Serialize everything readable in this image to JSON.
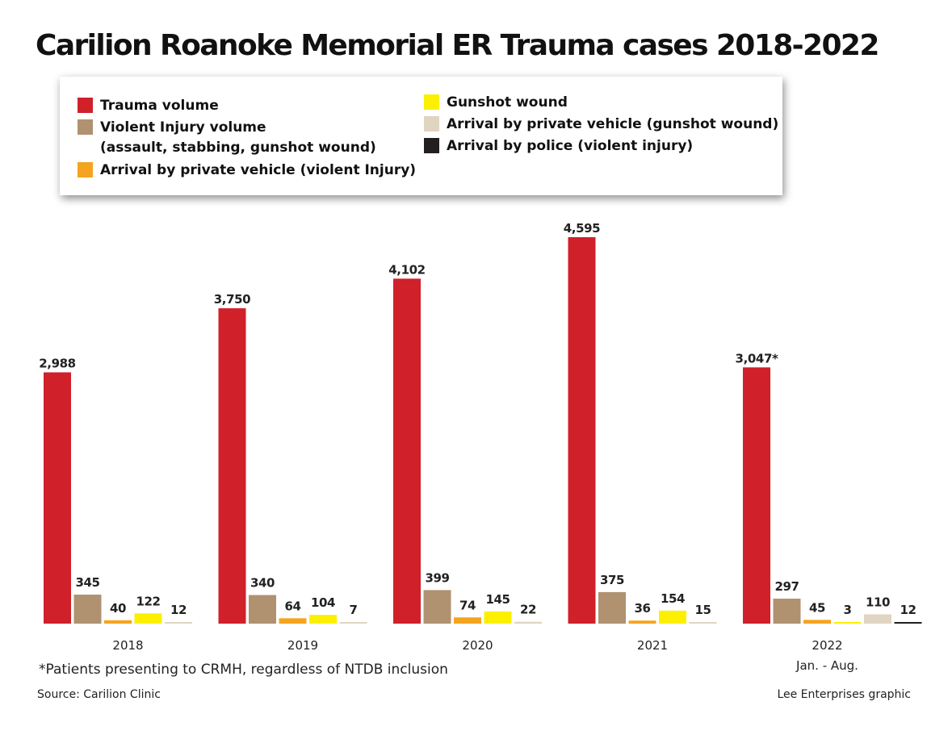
{
  "title": "Carilion Roanoke Memorial ER Trauma cases 2018-2022",
  "legend": [
    {
      "label": "Trauma volume",
      "sub": "",
      "color": "#d0202a"
    },
    {
      "label": "Violent Injury volume",
      "sub": "(assault, stabbing, gunshot wound)",
      "color": "#b09270"
    },
    {
      "label": "Arrival by private vehicle (violent Injury)",
      "sub": "",
      "color": "#f5a41f"
    },
    {
      "label": "Gunshot wound",
      "sub": "",
      "color": "#fcf000"
    },
    {
      "label": "Arrival by private vehicle (gunshot wound)",
      "sub": "",
      "color": "#e0d4c2"
    },
    {
      "label": "Arrival by police (violent injury)",
      "sub": "",
      "color": "#231f20"
    }
  ],
  "chart_data": {
    "type": "bar",
    "categories": [
      "2018",
      "2019",
      "2020",
      "2021",
      "2022"
    ],
    "category_sublabels": [
      "",
      "",
      "",
      "",
      "Jan. - Aug."
    ],
    "series": [
      {
        "name": "Trauma volume",
        "values": [
          2988,
          3750,
          4102,
          4595,
          3047
        ],
        "labels": [
          "2,988",
          "3,750",
          "4,102",
          "4,595",
          "3,047*"
        ]
      },
      {
        "name": "Violent Injury volume (assault, stabbing, gunshot wound)",
        "values": [
          345,
          340,
          399,
          375,
          297
        ],
        "labels": [
          "345",
          "340",
          "399",
          "375",
          "297"
        ]
      },
      {
        "name": "Arrival by private vehicle (violent Injury)",
        "values": [
          40,
          64,
          74,
          36,
          45
        ],
        "labels": [
          "40",
          "64",
          "74",
          "36",
          "45"
        ]
      },
      {
        "name": "Gunshot wound",
        "values": [
          122,
          104,
          145,
          154,
          3
        ],
        "labels": [
          "122",
          "104",
          "145",
          "154",
          "3"
        ]
      },
      {
        "name": "Arrival by private vehicle (gunshot wound)",
        "values": [
          12,
          7,
          22,
          15,
          110
        ],
        "labels": [
          "12",
          "7",
          "22",
          "15",
          "110"
        ]
      },
      {
        "name": "Arrival by police (violent injury)",
        "values": [
          null,
          null,
          null,
          null,
          12
        ],
        "labels": [
          "",
          "",
          "",
          "",
          "12"
        ]
      }
    ],
    "colors": [
      "#d0202a",
      "#b09270",
      "#f5a41f",
      "#fcf000",
      "#e0d4c2",
      "#231f20"
    ],
    "ylim": [
      0,
      4595
    ],
    "grid": false,
    "legend_position": "top"
  },
  "footnote": "*Patients presenting to CRMH, regardless of NTDB inclusion",
  "source": "Source: Carilion Clinic",
  "credit": "Lee Enterprises graphic"
}
